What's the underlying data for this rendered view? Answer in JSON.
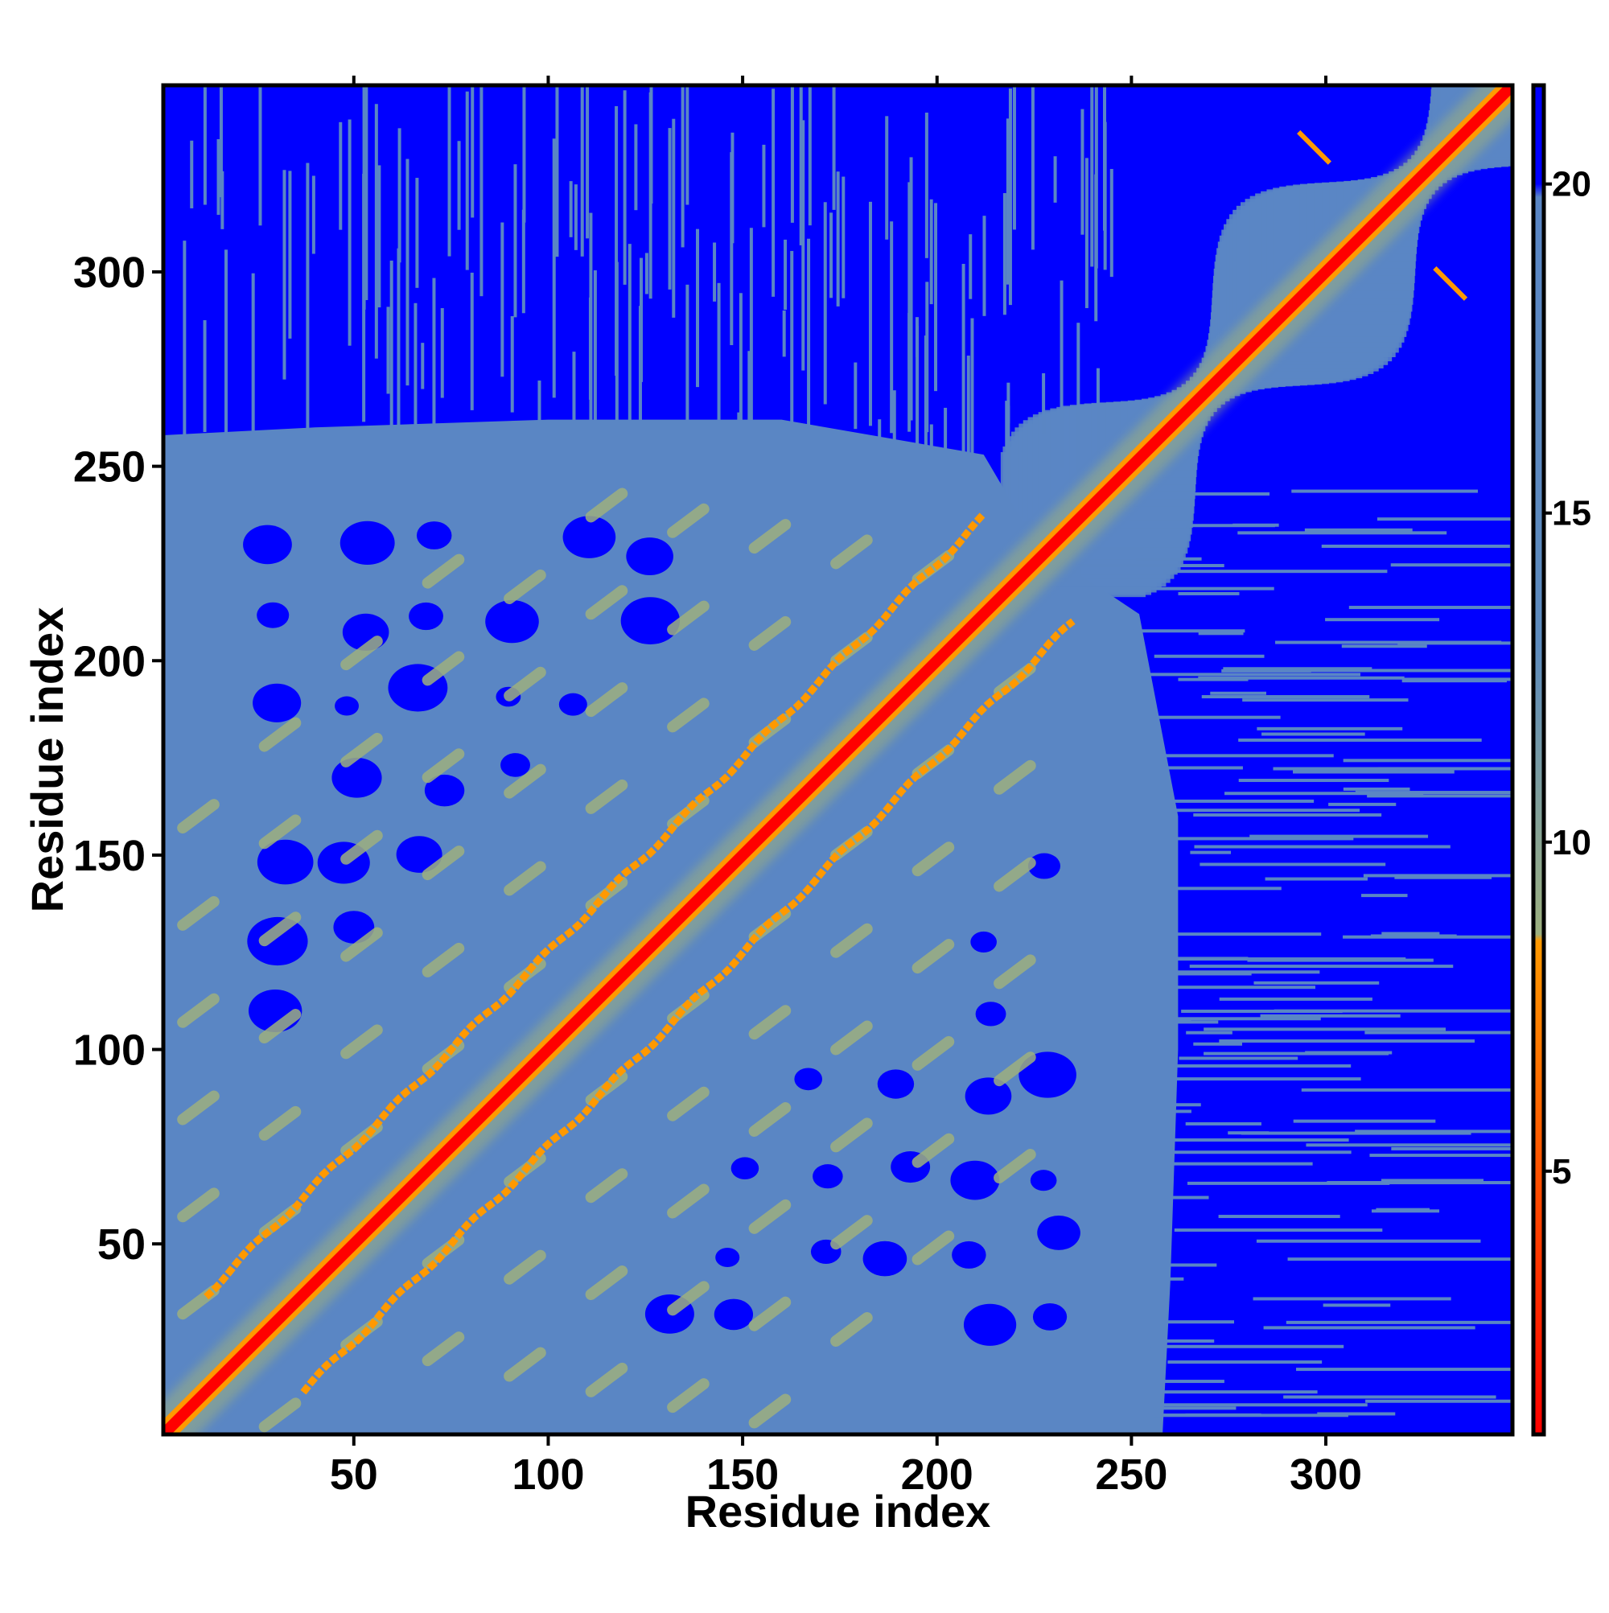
{
  "chart_data": {
    "type": "heatmap",
    "title": "",
    "xlabel": "Residue index",
    "ylabel": "Residue index",
    "xlim": [
      1,
      348
    ],
    "ylim": [
      1,
      348
    ],
    "x_ticks": [
      50,
      100,
      150,
      200,
      250,
      300
    ],
    "y_ticks": [
      50,
      100,
      150,
      200,
      250,
      300
    ],
    "colorbar": {
      "range": [
        1,
        21.5
      ],
      "ticks": [
        5,
        10,
        15,
        20
      ],
      "stops": [
        {
          "value": 1,
          "color": "#ff0000"
        },
        {
          "value": 8.5,
          "color": "#ff9900"
        },
        {
          "value": 8.6,
          "color": "#9db07f"
        },
        {
          "value": 13,
          "color": "#5d8bbd"
        },
        {
          "value": 19.8,
          "color": "#5a86c4"
        },
        {
          "value": 20,
          "color": "#0000ff"
        },
        {
          "value": 21.5,
          "color": "#0000ff"
        }
      ]
    },
    "colors": {
      "background": "#0000ff",
      "contact_core": "#ff0000",
      "contact_near": "#ff9900",
      "mid_distance": "#9db07f",
      "domain": "#5a86c4"
    },
    "structure": {
      "main_domain_range": [
        1,
        235
      ],
      "c_terminal_segment": [
        235,
        348
      ],
      "parallel_band_offsets": [
        25,
        -25
      ],
      "c_terminal_contacts": [
        {
          "x": 297,
          "y": 332
        },
        {
          "x": 332,
          "y": 297
        }
      ]
    }
  }
}
